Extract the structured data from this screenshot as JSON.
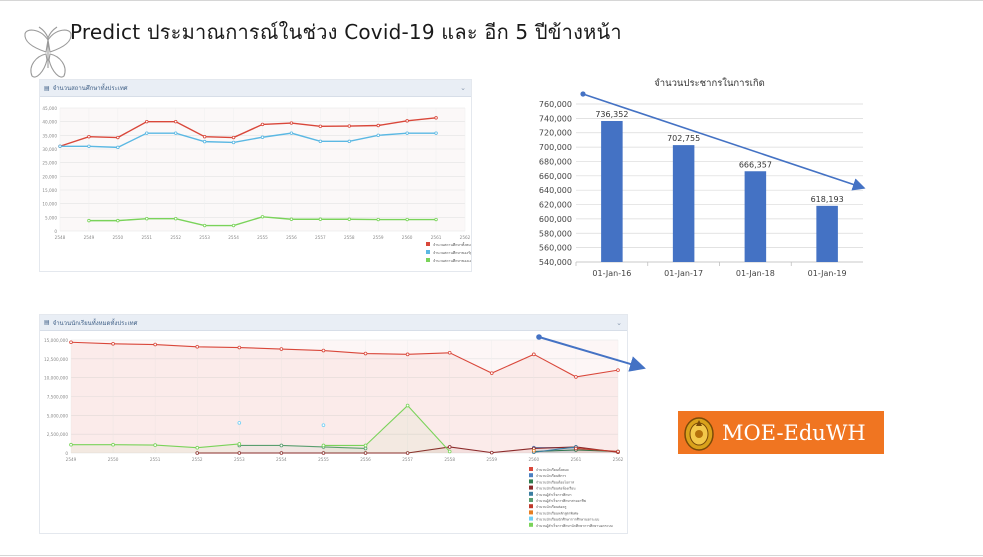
{
  "slide": {
    "title": "Predict ประมาณการณ์ในช่วง Covid-19 และ อีก 5 ปีข้างหน้า"
  },
  "logo": {
    "text": "MOE-EduWH",
    "color": "#f07521",
    "icon": "seal-emblem-icon"
  },
  "decor": {
    "icon": "butterfly-icon"
  },
  "trend_arrows": {
    "color": "#4472c4",
    "direction": "downward"
  },
  "chart_data": [
    {
      "type": "line",
      "title": "จำนวนสถานศึกษาทั้งประเทศ",
      "x": [
        "2548",
        "2549",
        "2550",
        "2551",
        "2552",
        "2553",
        "2554",
        "2555",
        "2556",
        "2557",
        "2558",
        "2559",
        "2560",
        "2561",
        "2562"
      ],
      "ylim": [
        0,
        45000
      ],
      "yticks": [
        0,
        5000,
        10000,
        15000,
        20000,
        25000,
        30000,
        35000,
        40000,
        45000
      ],
      "ytick_labels": [
        "0",
        "5,000",
        "10,000",
        "15,000",
        "20,000",
        "25,000",
        "30,000",
        "35,000",
        "40,000",
        "45,000"
      ],
      "grid": true,
      "legend_position": "bottom-right",
      "series": [
        {
          "name": "จำนวนสถานศึกษาทั้งหมด",
          "color": "#d9473a",
          "values": [
            31000,
            34500,
            34200,
            40000,
            40000,
            34500,
            34200,
            39000,
            39500,
            38300,
            38400,
            38600,
            40300,
            41400,
            null
          ]
        },
        {
          "name": "จำนวนสถานศึกษาของรัฐบาล",
          "color": "#5bb8e3",
          "values": [
            31000,
            31000,
            30600,
            35800,
            35800,
            32700,
            32400,
            34300,
            35800,
            32800,
            32800,
            35000,
            35800,
            35800,
            null
          ]
        },
        {
          "name": "จำนวนสถานศึกษาของเอกชน",
          "color": "#7ad35a",
          "values": [
            null,
            3800,
            3800,
            4500,
            4500,
            2000,
            2000,
            5200,
            4300,
            4300,
            4300,
            4200,
            4200,
            4200,
            null
          ]
        }
      ]
    },
    {
      "type": "bar",
      "title": "จำนวนประชากรในการเกิด",
      "categories": [
        "01-Jan-16",
        "01-Jan-17",
        "01-Jan-18",
        "01-Jan-19"
      ],
      "values": [
        736352,
        702755,
        666357,
        618193
      ],
      "value_labels": [
        "736,352",
        "702,755",
        "666,357",
        "618,193"
      ],
      "ylim": [
        540000,
        760000
      ],
      "yticks": [
        540000,
        560000,
        580000,
        600000,
        620000,
        640000,
        660000,
        680000,
        700000,
        720000,
        740000,
        760000
      ],
      "ytick_labels": [
        "540,000",
        "560,000",
        "580,000",
        "600,000",
        "620,000",
        "640,000",
        "660,000",
        "680,000",
        "700,000",
        "720,000",
        "740,000",
        "760,000"
      ],
      "bar_color": "#4472c4",
      "grid": true
    },
    {
      "type": "line",
      "title": "จำนวนนักเรียนทั้งหมดทั้งประเทศ",
      "x": [
        "2549",
        "2550",
        "2551",
        "2552",
        "2553",
        "2554",
        "2555",
        "2556",
        "2557",
        "2558",
        "2559",
        "2560",
        "2561",
        "2562"
      ],
      "ylim": [
        0,
        15000000
      ],
      "yticks": [
        0,
        2500000,
        5000000,
        7500000,
        10000000,
        12500000,
        15000000
      ],
      "ytick_labels": [
        "0",
        "2,500,000",
        "5,000,000",
        "7,500,000",
        "10,000,000",
        "12,500,000",
        "15,000,000"
      ],
      "grid": true,
      "legend_position": "bottom-right",
      "series": [
        {
          "name": "จำนวนนักเรียนทั้งหมด",
          "color": "#d9473a",
          "values": [
            14700000,
            14500000,
            14400000,
            14100000,
            14000000,
            13800000,
            13600000,
            13200000,
            13100000,
            13300000,
            10600000,
            13100000,
            10100000,
            11000000
          ]
        },
        {
          "name": "จำนวนนักเรียนพิการ",
          "color": "#4a7fc1",
          "values": [
            null,
            null,
            null,
            null,
            null,
            null,
            null,
            null,
            null,
            null,
            null,
            700000,
            700000,
            null
          ]
        },
        {
          "name": "จำนวนนักเรียนด้อยโอกาส",
          "color": "#2e7d4f",
          "values": [
            null,
            null,
            null,
            null,
            null,
            null,
            null,
            null,
            null,
            null,
            null,
            200000,
            400000,
            200000
          ]
        },
        {
          "name": "จำนวนนักเรียนต่อห้องเรียน",
          "color": "#8b2a2a",
          "values": [
            null,
            null,
            null,
            0,
            0,
            0,
            0,
            0,
            0,
            800000,
            50000,
            600000,
            800000,
            100000
          ]
        },
        {
          "name": "จำนวนผู้สำเร็จการศึกษา",
          "color": "#3b7ea1",
          "values": [
            null,
            null,
            null,
            null,
            null,
            null,
            null,
            null,
            null,
            null,
            null,
            100000,
            800000,
            null
          ]
        },
        {
          "name": "จำนวนผู้สำเร็จการศึกษาสายอาชีพ",
          "color": "#5a9e6f",
          "values": [
            null,
            null,
            null,
            null,
            1000000,
            1000000,
            800000,
            600000,
            null,
            null,
            null,
            null,
            null,
            null
          ]
        },
        {
          "name": "จำนวนนักเรียนต่อครู",
          "color": "#c0392b",
          "values": [
            null,
            null,
            null,
            null,
            null,
            null,
            null,
            null,
            null,
            null,
            null,
            null,
            600000,
            200000
          ]
        },
        {
          "name": "จำนวนนักเรียนหลักสูตรพิเศษ",
          "color": "#e67e22",
          "values": [
            null,
            null,
            null,
            null,
            null,
            null,
            null,
            null,
            null,
            null,
            null,
            300000,
            null,
            null
          ]
        },
        {
          "name": "จำนวนนักเรียนนักศึกษาการศึกษานอกระบบ",
          "color": "#6ecff6",
          "values": [
            null,
            null,
            null,
            null,
            4000000,
            null,
            3700000,
            null,
            null,
            null,
            null,
            null,
            null,
            null
          ]
        },
        {
          "name": "จำนวนผู้สำเร็จการศึกษานักศึกษาการศึกษานอกระบบ",
          "color": "#7ad35a",
          "values": [
            1100000,
            1100000,
            1050000,
            700000,
            1200000,
            null,
            1000000,
            1000000,
            6300000,
            200000,
            null,
            null,
            null,
            null
          ]
        }
      ]
    }
  ]
}
